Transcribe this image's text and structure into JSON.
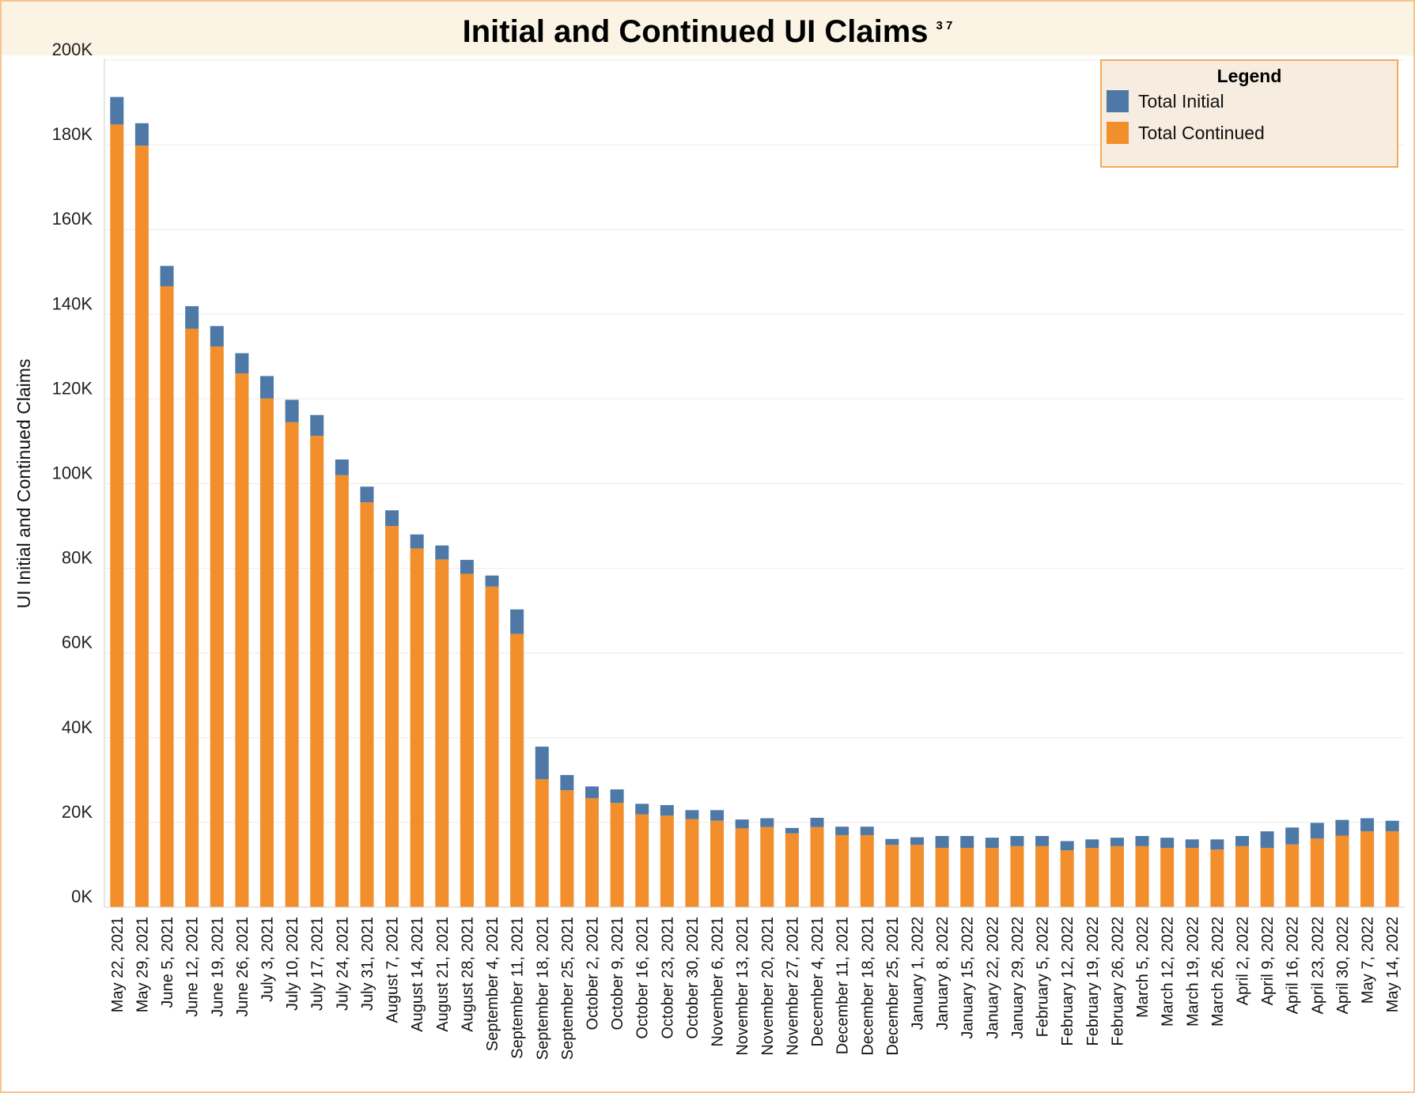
{
  "chart_data": {
    "type": "bar",
    "stacked": true,
    "title": "Initial and Continued UI Claims",
    "title_superscript": "3 7",
    "ylabel": "UI Initial and Continued Claims",
    "xlabel": "",
    "ylim": [
      0,
      200000
    ],
    "yticks": [
      0,
      20000,
      40000,
      60000,
      80000,
      100000,
      120000,
      140000,
      160000,
      180000,
      200000
    ],
    "ytick_labels": [
      "0K",
      "20K",
      "40K",
      "60K",
      "80K",
      "100K",
      "120K",
      "140K",
      "160K",
      "180K",
      "200K"
    ],
    "grid": true,
    "legend_placement": "top-right",
    "legend_title": "Legend",
    "categories": [
      "May 22, 2021",
      "May 29, 2021",
      "June 5, 2021",
      "June 12, 2021",
      "June 19, 2021",
      "June 26, 2021",
      "July 3, 2021",
      "July 10, 2021",
      "July 17, 2021",
      "July 24, 2021",
      "July 31, 2021",
      "August 7, 2021",
      "August 14, 2021",
      "August 21, 2021",
      "August 28, 2021",
      "September 4, 2021",
      "September 11, 2021",
      "September 18, 2021",
      "September 25, 2021",
      "October 2, 2021",
      "October 9, 2021",
      "October 16, 2021",
      "October 23, 2021",
      "October 30, 2021",
      "November 6, 2021",
      "November 13, 2021",
      "November 20, 2021",
      "November 27, 2021",
      "December 4, 2021",
      "December 11, 2021",
      "December 18, 2021",
      "December 25, 2021",
      "January 1, 2022",
      "January 8, 2022",
      "January 15, 2022",
      "January 22, 2022",
      "January 29, 2022",
      "February 5, 2022",
      "February 12, 2022",
      "February 19, 2022",
      "February 26, 2022",
      "March 5, 2022",
      "March 12, 2022",
      "March 19, 2022",
      "March 26, 2022",
      "April 2, 2022",
      "April 9, 2022",
      "April 16, 2022",
      "April 23, 2022",
      "April 30, 2022",
      "May 7, 2022",
      "May 14, 2022"
    ],
    "series": [
      {
        "name": "Total Continued",
        "color": "#f28e2b",
        "values": [
          184800,
          179800,
          146600,
          136600,
          132400,
          126000,
          120100,
          114500,
          111300,
          102000,
          95600,
          90000,
          84700,
          82100,
          78700,
          75700,
          64500,
          30200,
          27600,
          25700,
          24600,
          21900,
          21600,
          20800,
          20400,
          18600,
          18900,
          17400,
          18900,
          17000,
          17000,
          14700,
          14700,
          14000,
          14000,
          14000,
          14400,
          14400,
          13400,
          14000,
          14400,
          14400,
          14000,
          14000,
          13600,
          14400,
          14000,
          14800,
          16200,
          16900,
          17900,
          17900
        ]
      },
      {
        "name": "Total Initial",
        "color": "#4e79a7",
        "values": [
          6500,
          5300,
          4800,
          5300,
          4800,
          4800,
          5300,
          5300,
          4900,
          3700,
          3700,
          3700,
          3300,
          3300,
          3300,
          2600,
          5800,
          7700,
          3600,
          2800,
          3200,
          2500,
          2500,
          2100,
          2500,
          2100,
          2100,
          1300,
          2200,
          2000,
          2000,
          1400,
          1800,
          2800,
          2800,
          2400,
          2400,
          2400,
          2200,
          2000,
          2000,
          2400,
          2400,
          2000,
          2400,
          2400,
          3900,
          4000,
          3700,
          3700,
          3100,
          2500
        ]
      }
    ]
  }
}
